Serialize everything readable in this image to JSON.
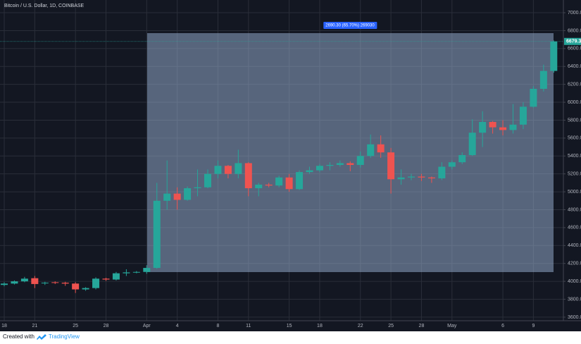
{
  "chart_data": {
    "type": "candlestick",
    "title": "Bitcoin / U.S. Dollar, 1D, COINBASE",
    "categories": [
      "18",
      null,
      null,
      "21",
      null,
      null,
      null,
      "25",
      null,
      null,
      "28",
      null,
      null,
      null,
      "Apr",
      null,
      null,
      "4",
      null,
      null,
      null,
      "8",
      null,
      null,
      "11",
      null,
      null,
      null,
      "15",
      null,
      null,
      "18",
      null,
      null,
      null,
      "22",
      null,
      null,
      "25",
      null,
      null,
      "28",
      null,
      null,
      "May",
      null,
      null,
      null,
      null,
      "6",
      null,
      null,
      "9",
      null,
      null
    ],
    "open": [
      3960,
      3975,
      4000,
      4035,
      3980,
      3990,
      3985,
      3975,
      3910,
      3925,
      4030,
      4020,
      4090,
      4100,
      4105,
      4150,
      4900,
      4980,
      4910,
      5040,
      5050,
      5200,
      5290,
      5200,
      5320,
      5040,
      5080,
      5070,
      5160,
      5030,
      5220,
      5240,
      5290,
      5300,
      5320,
      5300,
      5400,
      5530,
      5440,
      5140,
      5160,
      5170,
      5160,
      5150,
      5280,
      5330,
      5410,
      5660,
      5780,
      5720,
      5690,
      5750,
      5950,
      6150,
      6350
    ],
    "high": [
      3990,
      4010,
      4050,
      4060,
      3995,
      4000,
      3995,
      3990,
      3935,
      4045,
      4040,
      4105,
      4135,
      4115,
      4180,
      5100,
      5350,
      5050,
      5060,
      5250,
      5250,
      5350,
      5300,
      5470,
      5330,
      5100,
      5100,
      5180,
      5200,
      5240,
      5280,
      5310,
      5330,
      5350,
      5340,
      5450,
      5640,
      5630,
      5490,
      5250,
      5200,
      5200,
      5170,
      5330,
      5350,
      5440,
      5810,
      5900,
      5790,
      5800,
      5980,
      6000,
      6180,
      6420,
      6690
    ],
    "low": [
      3945,
      3965,
      3990,
      3925,
      3960,
      3970,
      3950,
      3870,
      3895,
      3910,
      4005,
      4010,
      4060,
      4090,
      4085,
      4140,
      4800,
      4800,
      4900,
      4950,
      5040,
      5150,
      5150,
      5150,
      4950,
      4950,
      5050,
      5050,
      5000,
      5020,
      5200,
      5220,
      5240,
      5280,
      5230,
      5270,
      5380,
      5380,
      4980,
      5080,
      5130,
      5120,
      5100,
      5130,
      5250,
      5310,
      5400,
      5500,
      5650,
      5630,
      5650,
      5700,
      5940,
      6120,
      6330
    ],
    "close": [
      3975,
      4000,
      4030,
      3970,
      3985,
      3982,
      3975,
      3910,
      3925,
      4030,
      4020,
      4090,
      4100,
      4105,
      4150,
      4900,
      4980,
      4910,
      5040,
      5050,
      5200,
      5290,
      5200,
      5320,
      5040,
      5080,
      5070,
      5160,
      5030,
      5220,
      5240,
      5290,
      5300,
      5320,
      5300,
      5400,
      5530,
      5440,
      5140,
      5160,
      5170,
      5160,
      5150,
      5280,
      5330,
      5410,
      5660,
      5780,
      5720,
      5690,
      5750,
      5950,
      6150,
      6350,
      6679.3
    ],
    "last_price": 6679.3,
    "up_color": "#26a69a",
    "down_color": "#ef5350",
    "ylim": [
      3560,
      7142
    ],
    "yticks": [
      {
        "value": 3600,
        "label": "3600.00"
      },
      {
        "value": 3800,
        "label": "3800.00"
      },
      {
        "value": 4000,
        "label": "4000.00"
      },
      {
        "value": 4200,
        "label": "4200.00"
      },
      {
        "value": 4400,
        "label": "4400.00"
      },
      {
        "value": 4600,
        "label": "4600.00"
      },
      {
        "value": 4800,
        "label": "4800.00"
      },
      {
        "value": 5000,
        "label": "5000.00"
      },
      {
        "value": 5200,
        "label": "5200.00"
      },
      {
        "value": 5400,
        "label": "5400.00"
      },
      {
        "value": 5600,
        "label": "5600.00"
      },
      {
        "value": 5800,
        "label": "5800.00"
      },
      {
        "value": 6000,
        "label": "6000.00"
      },
      {
        "value": 6200,
        "label": "6200.00"
      },
      {
        "value": 6400,
        "label": "6400.00"
      },
      {
        "value": 6600,
        "label": "6600.00"
      },
      {
        "value": 6800,
        "label": "6800.00"
      },
      {
        "value": 7000,
        "label": "7000.00"
      }
    ],
    "grid": true,
    "annotation": "2690.30 (65.70%) 269030"
  },
  "footer": {
    "text": "Created with",
    "brand": "TradingView"
  }
}
